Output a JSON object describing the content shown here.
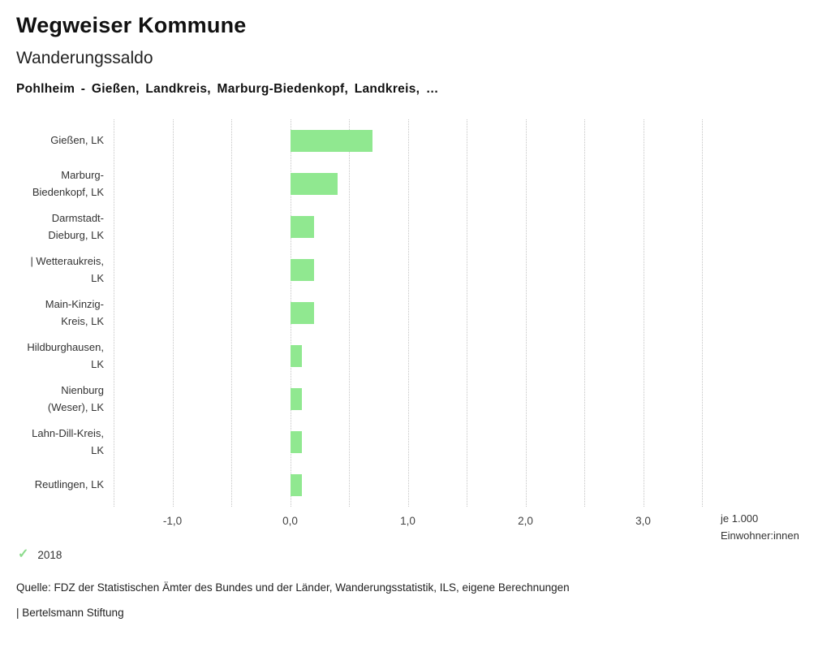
{
  "header": {
    "title": "Wegweiser Kommune",
    "subtitle": "Wanderungssaldo",
    "description": "Pohlheim - Gießen, Landkreis, Marburg-Biedenkopf, Landkreis, …"
  },
  "chart_data": {
    "type": "bar",
    "orientation": "horizontal",
    "title": "Wanderungssaldo",
    "categories": [
      "Gießen, LK",
      "Marburg-Biedenkopf, LK",
      "Darmstadt-Dieburg, LK",
      "| Wetteraukreis, LK",
      "Main-Kinzig-Kreis, LK",
      "Hildburghausen, LK",
      "Nienburg (Weser), LK",
      "Lahn-Dill-Kreis, LK",
      "Reutlingen, LK"
    ],
    "series": [
      {
        "name": "2018",
        "values": [
          0.7,
          0.4,
          0.2,
          0.2,
          0.2,
          0.1,
          0.1,
          0.1,
          0.1
        ]
      }
    ],
    "xlabel": "je 1.000 Einwohner:innen",
    "xlim": [
      -1.5,
      3.5
    ],
    "x_ticks": [
      -1,
      0,
      1,
      2,
      3
    ],
    "x_tick_labels": [
      "-1,0",
      "0,0",
      "1,0",
      "2,0",
      "3,0"
    ],
    "gridline_step": 0.5,
    "grid": true,
    "legend_position": "bottom-left",
    "bar_color": "#90e890"
  },
  "legend": {
    "items": [
      {
        "label": "2018",
        "checked": true,
        "color": "#8cdb8c"
      }
    ]
  },
  "footer": {
    "source": "Quelle: FDZ der Statistischen Ämter des Bundes und der Länder, Wanderungsstatistik, ILS, eigene Berechnungen",
    "branding": "| Bertelsmann Stiftung"
  }
}
